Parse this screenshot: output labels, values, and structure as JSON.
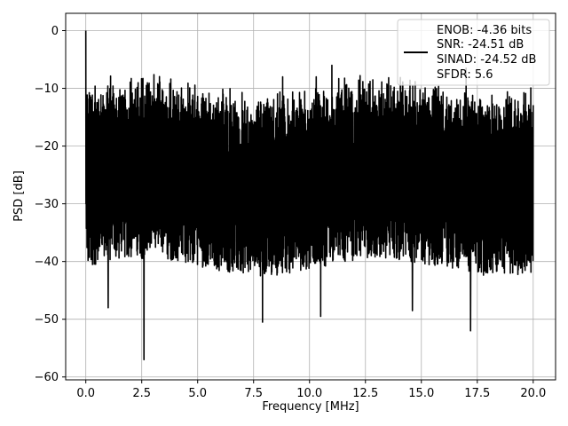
{
  "chart_data": {
    "type": "line",
    "title": "",
    "xlabel": "Frequency [MHz]",
    "ylabel": "PSD [dB]",
    "xlim": [
      -0.9,
      21.0
    ],
    "ylim": [
      -60.5,
      3
    ],
    "xticks": [
      0.0,
      2.5,
      5.0,
      7.5,
      10.0,
      12.5,
      15.0,
      17.5,
      20.0
    ],
    "xtick_labels": [
      "0.0",
      "2.5",
      "5.0",
      "7.5",
      "10.0",
      "12.5",
      "15.0",
      "17.5",
      "20.0"
    ],
    "yticks": [
      0,
      -10,
      -20,
      -30,
      -40,
      -50,
      -60
    ],
    "ytick_labels": [
      "0",
      "−10",
      "−20",
      "−30",
      "−40",
      "−50",
      "−60"
    ],
    "grid": true,
    "legend_position": "top-right",
    "series": [
      {
        "color": "#000000",
        "x_range": [
          0,
          20
        ],
        "peak": {
          "x": 0.0,
          "y": 0
        },
        "typical_upper": -14,
        "typical_lower": -36,
        "notable_minima": [
          {
            "x": 2.6,
            "y": -57
          },
          {
            "x": 17.2,
            "y": -52
          },
          {
            "x": 7.9,
            "y": -50.5
          },
          {
            "x": 14.6,
            "y": -48.5
          },
          {
            "x": 1.0,
            "y": -48
          },
          {
            "x": 10.5,
            "y": -49.5
          }
        ],
        "notable_maxima": [
          {
            "x": 11.0,
            "y": -6
          },
          {
            "x": 17.0,
            "y": -6.5
          },
          {
            "x": 8.8,
            "y": -8
          },
          {
            "x": 10.3,
            "y": -8
          }
        ]
      }
    ],
    "legend": {
      "lines": [
        "ENOB: -4.36 bits",
        "SNR: -24.51 dB",
        "SINAD: -24.52 dB",
        "SFDR: 5.6"
      ]
    }
  }
}
